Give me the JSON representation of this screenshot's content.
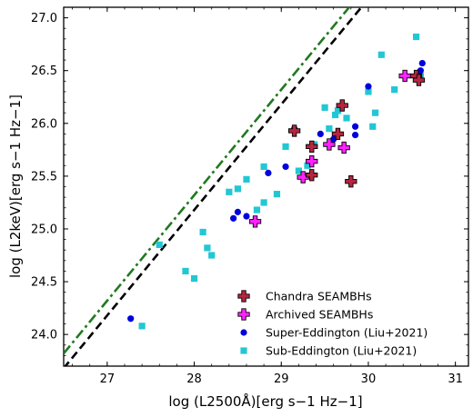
{
  "chart_data": {
    "type": "scatter",
    "xlabel": "log (L2500Å)[erg s−1 Hz−1]",
    "ylabel": "log (L2keV)[erg s−1 Hz−1]",
    "xlim": [
      26.5,
      31.15
    ],
    "ylim": [
      23.7,
      27.1
    ],
    "xticks": [
      "27",
      "28",
      "29",
      "30",
      "31"
    ],
    "yticks": [
      "24.0",
      "24.5",
      "25.0",
      "25.5",
      "26.0",
      "26.5",
      "27.0"
    ],
    "grid": false,
    "legend_position": "bottom-right",
    "lines": [
      {
        "style": "dashdot",
        "color": "#1f7a1f",
        "slope": 1.0,
        "intercept": -2.68
      },
      {
        "style": "dashed",
        "color": "#000000",
        "slope": 1.0,
        "intercept": -2.82
      }
    ],
    "series": [
      {
        "name": "Chandra SEAMBHs",
        "marker": "plus",
        "color": "#b5253f",
        "points": [
          [
            29.15,
            25.93
          ],
          [
            29.35,
            25.78
          ],
          [
            29.35,
            25.51
          ],
          [
            29.65,
            25.9
          ],
          [
            29.7,
            26.17
          ],
          [
            29.8,
            25.45
          ],
          [
            30.55,
            26.45
          ],
          [
            30.58,
            26.41
          ]
        ]
      },
      {
        "name": "Archived SEAMBHs",
        "marker": "plus",
        "color": "#ff22ff",
        "points": [
          [
            28.7,
            25.07
          ],
          [
            29.25,
            25.49
          ],
          [
            29.35,
            25.64
          ],
          [
            29.55,
            25.8
          ],
          [
            29.72,
            25.77
          ],
          [
            30.42,
            26.45
          ]
        ]
      },
      {
        "name": "Super-Eddington (Liu+2021)",
        "marker": "circle",
        "color": "#0000dd",
        "points": [
          [
            27.27,
            24.15
          ],
          [
            28.45,
            25.1
          ],
          [
            28.5,
            25.16
          ],
          [
            28.6,
            25.12
          ],
          [
            28.85,
            25.53
          ],
          [
            29.05,
            25.59
          ],
          [
            29.15,
            25.95
          ],
          [
            29.45,
            25.9
          ],
          [
            29.6,
            25.85
          ],
          [
            29.85,
            25.97
          ],
          [
            29.85,
            25.89
          ],
          [
            30.0,
            26.35
          ],
          [
            30.6,
            26.5
          ],
          [
            30.62,
            26.57
          ]
        ]
      },
      {
        "name": "Sub-Eddington (Liu+2021)",
        "marker": "square",
        "color": "#22c7d4",
        "points": [
          [
            27.4,
            24.08
          ],
          [
            27.6,
            24.85
          ],
          [
            27.9,
            24.6
          ],
          [
            28.0,
            24.53
          ],
          [
            28.1,
            24.97
          ],
          [
            28.15,
            24.82
          ],
          [
            28.2,
            24.75
          ],
          [
            28.4,
            25.35
          ],
          [
            28.5,
            25.38
          ],
          [
            28.6,
            25.47
          ],
          [
            28.72,
            25.18
          ],
          [
            28.8,
            25.25
          ],
          [
            28.8,
            25.59
          ],
          [
            28.95,
            25.33
          ],
          [
            29.05,
            25.78
          ],
          [
            29.2,
            25.55
          ],
          [
            29.3,
            25.6
          ],
          [
            29.38,
            25.8
          ],
          [
            29.5,
            26.15
          ],
          [
            29.55,
            25.95
          ],
          [
            29.62,
            26.08
          ],
          [
            29.65,
            26.12
          ],
          [
            29.75,
            26.05
          ],
          [
            30.0,
            26.3
          ],
          [
            30.05,
            25.97
          ],
          [
            30.08,
            26.1
          ],
          [
            30.15,
            26.65
          ],
          [
            30.3,
            26.32
          ],
          [
            30.55,
            26.82
          ],
          [
            30.6,
            26.45
          ]
        ]
      }
    ]
  }
}
